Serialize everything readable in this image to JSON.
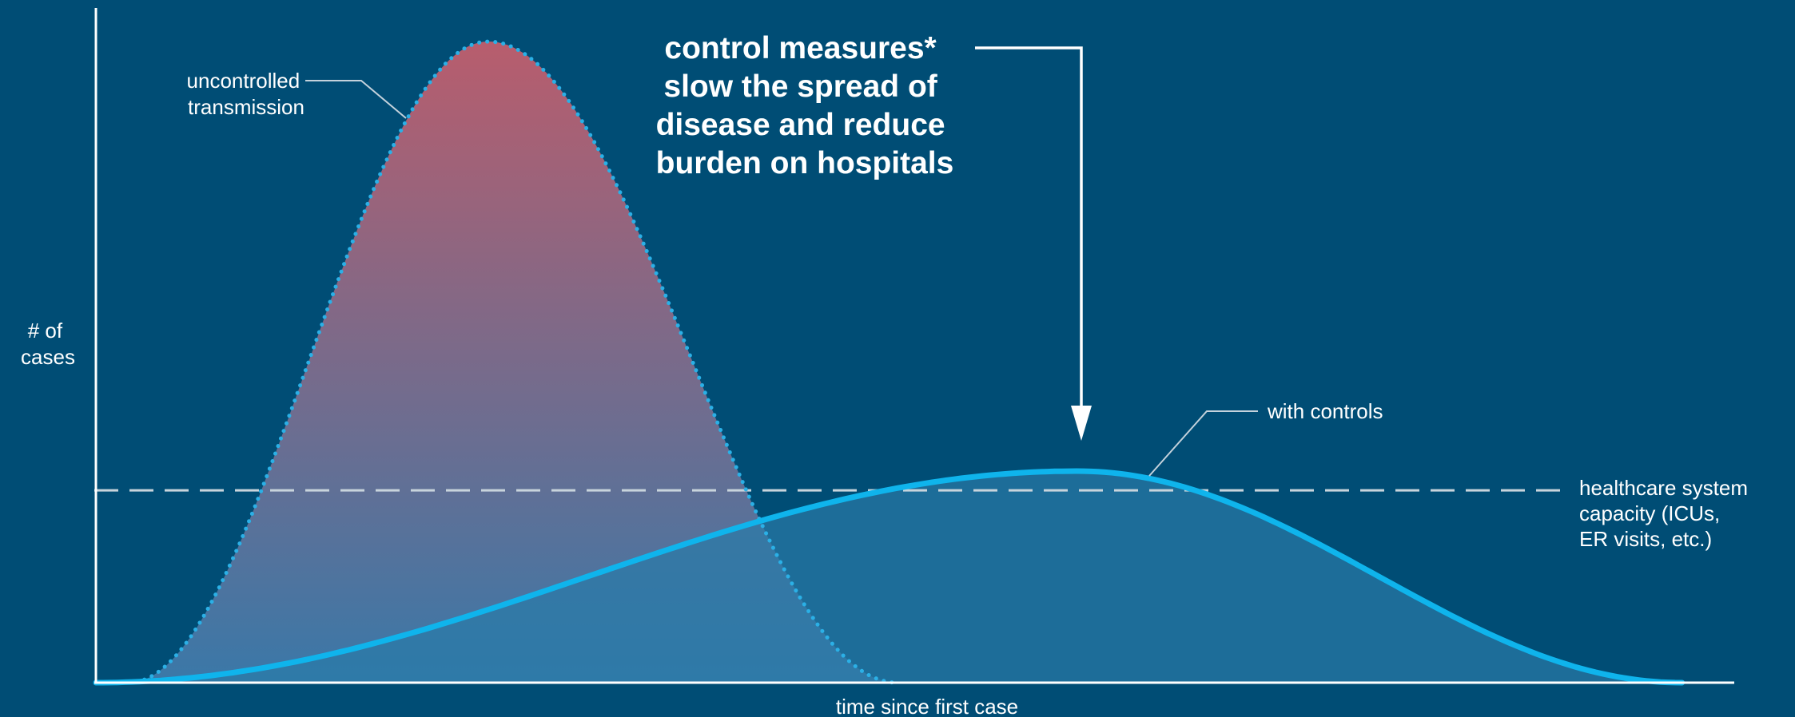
{
  "chart_data": {
    "type": "area",
    "title": "",
    "xlabel": "time since first case",
    "ylabel_lines": [
      "# of",
      "cases"
    ],
    "axes": {
      "x_ticks": false,
      "y_ticks": false,
      "grid": false,
      "legend": "none"
    },
    "series": [
      {
        "name": "uncontrolled transmission",
        "name_lines": [
          "uncontrolled",
          "transmission"
        ],
        "line_style": "dotted",
        "fill": "gradient red-to-blue",
        "shape": "tall narrow peak",
        "start": 0.02,
        "peak_at": 0.24,
        "peak_value": 1.0,
        "end": 0.49
      },
      {
        "name": "with controls",
        "name_lines": [
          "with controls"
        ],
        "line_style": "solid",
        "fill": "translucent blue",
        "shape": "low wide peak",
        "start": 0.0,
        "peak_at": 0.6,
        "peak_value": 0.33,
        "end": 0.97
      }
    ],
    "reference_line": {
      "label_lines": [
        "healthcare system",
        "capacity (ICUs,",
        "ER visits, etc.)"
      ],
      "value": 0.3,
      "style": "dashed"
    },
    "annotation": {
      "lines": [
        "control measures*",
        "slow the spread of",
        "disease and reduce",
        "burden on hospitals"
      ],
      "arrow": "points down to the with-controls peak"
    }
  },
  "colors": {
    "background": "#004d75",
    "axis": "#ffffff",
    "controlled_line": "#0fb4ec",
    "uncontrolled_line": "#2bb0e6",
    "uncontrolled_fill_top": "#b85d6d",
    "uncontrolled_fill_bottom": "#3a78a8",
    "controlled_fill": "#2a7aa8",
    "capacity_line": "#c8d4dc",
    "leader_line": "#c4d2dc"
  }
}
